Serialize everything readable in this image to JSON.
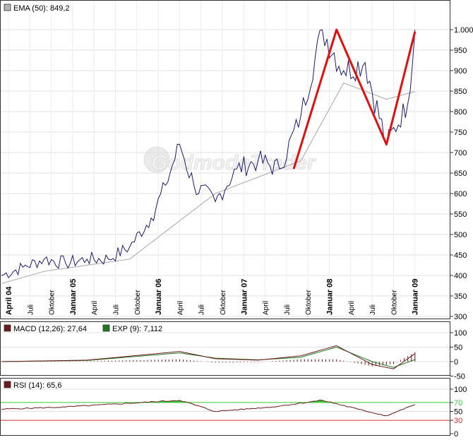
{
  "main_panel": {
    "legend": {
      "label": "EMA (50): 849,2",
      "swatch_color": "#b4b4b4"
    },
    "watermark": "GodmodeTrader",
    "y_ticks": [
      300,
      350,
      400,
      450,
      500,
      550,
      600,
      650,
      700,
      750,
      800,
      850,
      900,
      950,
      1000
    ],
    "y_tick_labels": [
      "300",
      "350",
      "400",
      "450",
      "500",
      "550",
      "600",
      "650",
      "700",
      "750",
      "800",
      "850",
      "900",
      "950",
      "1.000"
    ],
    "x_labels": [
      {
        "text": "April 04",
        "bold": true
      },
      {
        "text": "Juli",
        "bold": false
      },
      {
        "text": "Oktober",
        "bold": false
      },
      {
        "text": "Januar 05",
        "bold": true
      },
      {
        "text": "April",
        "bold": false
      },
      {
        "text": "Juli",
        "bold": false
      },
      {
        "text": "Oktober",
        "bold": false
      },
      {
        "text": "Januar 06",
        "bold": true
      },
      {
        "text": "April",
        "bold": false
      },
      {
        "text": "Juli",
        "bold": false
      },
      {
        "text": "Oktober",
        "bold": false
      },
      {
        "text": "Januar 07",
        "bold": true
      },
      {
        "text": "April",
        "bold": false
      },
      {
        "text": "Juli",
        "bold": false
      },
      {
        "text": "Oktober",
        "bold": false
      },
      {
        "text": "Januar 08",
        "bold": true
      },
      {
        "text": "April",
        "bold": false
      },
      {
        "text": "Juli",
        "bold": false
      },
      {
        "text": "Oktober",
        "bold": false
      },
      {
        "text": "Januar 09",
        "bold": true
      }
    ]
  },
  "macd_panel": {
    "legend_macd": {
      "label": "MACD (12,26): 27,64",
      "swatch_color": "#6b1a1a"
    },
    "legend_exp": {
      "label": "EXP (9): 7,112",
      "swatch_color": "#1f7a1f"
    },
    "y_ticks": [
      -50,
      0,
      50,
      100
    ],
    "y_tick_labels": [
      "-50",
      "0",
      "50",
      "100"
    ]
  },
  "rsi_panel": {
    "legend": {
      "label": "RSI (14): 65,6",
      "swatch_color": "#6b1a1a"
    },
    "y_ticks": [
      0,
      30,
      50,
      70,
      100
    ],
    "y_tick_labels": [
      "0",
      "30",
      "50",
      "70",
      "100"
    ],
    "overbought": 70,
    "oversold": 30
  },
  "colors": {
    "price": "#1c1c6e",
    "ema": "#b4b4b4",
    "pattern": "#e01010",
    "macd": "#6b1a1a",
    "signal": "#1f7a1f",
    "histogram": "#6b1a1a",
    "rsi": "#6b1a1a",
    "rsi_fill": "#33cc33",
    "level70": "#33cc33",
    "level30": "#d83030"
  },
  "chart_data": [
    {
      "type": "line",
      "title": "",
      "x_start": "April 2004",
      "x_end": "Februar 2009",
      "ylim": [
        300,
        1000
      ],
      "series": [
        {
          "name": "",
          "x": [
            "2004-04",
            "2004-07",
            "2004-10",
            "2005-01",
            "2005-04",
            "2005-07",
            "2005-10",
            "2006-01",
            "2006-03",
            "2006-05",
            "2006-07",
            "2006-10",
            "2007-01",
            "2007-04",
            "2007-07",
            "2007-10",
            "2008-01",
            "2008-04",
            "2008-07",
            "2008-10",
            "2009-01",
            "2009-02"
          ],
          "values": [
            400,
            420,
            440,
            430,
            440,
            440,
            470,
            540,
            620,
            720,
            620,
            580,
            660,
            680,
            660,
            790,
            1000,
            900,
            920,
            720,
            820,
            1000
          ]
        },
        {
          "name": "EMA (50)",
          "x": [
            "2004-04",
            "2004-10",
            "2005-04",
            "2005-10",
            "2006-04",
            "2006-10",
            "2007-04",
            "2007-10",
            "2008-04",
            "2008-10",
            "2009-02"
          ],
          "values": [
            380,
            410,
            425,
            440,
            520,
            600,
            640,
            680,
            870,
            830,
            849
          ]
        }
      ],
      "pattern_line": {
        "x": [
          "2007-09",
          "2008-03",
          "2008-10",
          "2009-02"
        ],
        "values": [
          660,
          1000,
          720,
          995
        ]
      }
    },
    {
      "type": "line",
      "ylim": [
        -50,
        100
      ],
      "series": [
        {
          "name": "MACD (12,26)",
          "x": [
            "2004-04",
            "2005-04",
            "2006-05",
            "2006-10",
            "2007-04",
            "2007-10",
            "2008-03",
            "2008-08",
            "2008-11",
            "2009-02"
          ],
          "values": [
            0,
            5,
            35,
            10,
            5,
            20,
            55,
            -10,
            -25,
            27.64
          ]
        },
        {
          "name": "EXP (9)",
          "x": [
            "2004-04",
            "2005-04",
            "2006-05",
            "2006-10",
            "2007-04",
            "2007-10",
            "2008-03",
            "2008-08",
            "2008-11",
            "2009-02"
          ],
          "values": [
            0,
            4,
            30,
            12,
            6,
            15,
            50,
            0,
            -20,
            7.112
          ]
        }
      ]
    },
    {
      "type": "line",
      "ylim": [
        0,
        100
      ],
      "series": [
        {
          "name": "RSI (14)",
          "x": [
            "2004-04",
            "2005-01",
            "2006-05",
            "2006-10",
            "2007-06",
            "2008-01",
            "2008-06",
            "2008-10",
            "2009-02"
          ],
          "values": [
            55,
            60,
            75,
            50,
            60,
            75,
            55,
            40,
            65.6
          ]
        }
      ]
    }
  ]
}
